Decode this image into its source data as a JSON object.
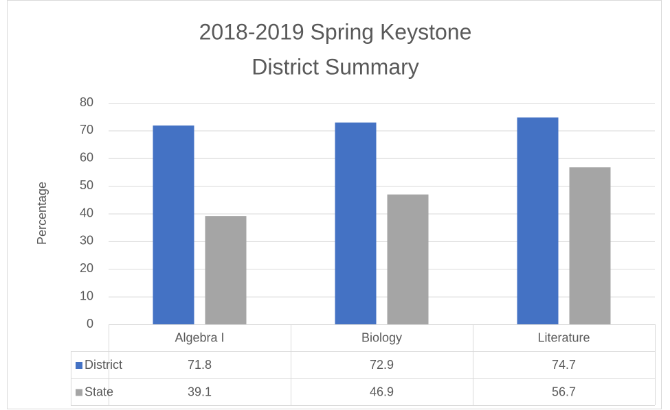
{
  "chart_data": {
    "type": "bar",
    "title": [
      "2018-2019 Spring Keystone",
      "District Summary"
    ],
    "y_label": "Percentage",
    "categories": [
      "Algebra I",
      "Biology",
      "Literature"
    ],
    "series": [
      {
        "name": "District",
        "color": "#4472c4",
        "values": [
          71.8,
          72.9,
          74.7
        ]
      },
      {
        "name": "State",
        "color": "#a5a5a5",
        "values": [
          39.1,
          46.9,
          56.7
        ]
      }
    ],
    "ylim": [
      0,
      80
    ],
    "yticks": [
      0,
      10,
      20,
      30,
      40,
      50,
      60,
      70,
      80
    ],
    "grid": true
  }
}
